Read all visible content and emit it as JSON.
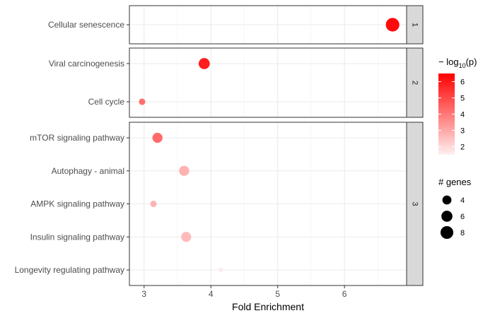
{
  "chart_data": {
    "type": "scatter",
    "title": "",
    "xlabel": "Fold Enrichment",
    "ylabel": "",
    "xlim": [
      2.78,
      6.93
    ],
    "x_ticks": [
      3,
      4,
      5,
      6
    ],
    "grid": true,
    "legend_placement": "right",
    "color_legend": {
      "title": "-log10(p)",
      "title_main": "− log",
      "title_sub": "10",
      "title_tail": "(p)",
      "range": [
        1.5,
        6.5
      ],
      "ticks": [
        2,
        3,
        4,
        5,
        6
      ],
      "low_color": "#fff0f0",
      "high_color": "#ff0000"
    },
    "size_legend": {
      "title": "# genes",
      "values": [
        4,
        6,
        8
      ]
    },
    "panels": [
      {
        "strip": "1",
        "points": [
          {
            "term": "Cellular senescence",
            "fold_enrichment": 6.72,
            "neg_log10_p": 6.3,
            "genes": 9
          }
        ]
      },
      {
        "strip": "2",
        "points": [
          {
            "term": "Viral carcinogenesis",
            "fold_enrichment": 3.9,
            "neg_log10_p": 5.9,
            "genes": 6
          },
          {
            "term": "Cell cycle",
            "fold_enrichment": 2.97,
            "neg_log10_p": 4.2,
            "genes": 2
          }
        ]
      },
      {
        "strip": "3",
        "points": [
          {
            "term": "mTOR signaling pathway",
            "fold_enrichment": 3.2,
            "neg_log10_p": 4.3,
            "genes": 5
          },
          {
            "term": "Autophagy - animal",
            "fold_enrichment": 3.6,
            "neg_log10_p": 2.8,
            "genes": 5
          },
          {
            "term": "AMPK signaling pathway",
            "fold_enrichment": 3.14,
            "neg_log10_p": 2.8,
            "genes": 2
          },
          {
            "term": "Insulin signaling pathway",
            "fold_enrichment": 3.63,
            "neg_log10_p": 2.6,
            "genes": 5
          },
          {
            "term": "Longevity regulating pathway",
            "fold_enrichment": 4.15,
            "neg_log10_p": 1.6,
            "genes": 1
          }
        ]
      }
    ]
  }
}
